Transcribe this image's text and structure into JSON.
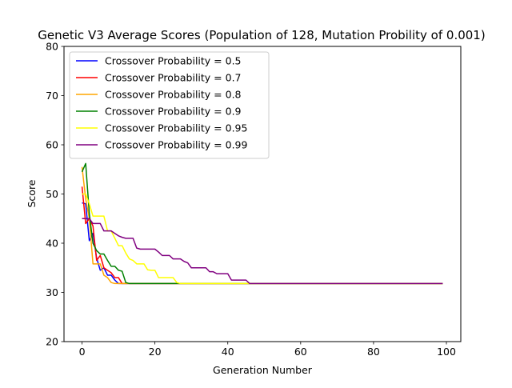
{
  "chart_data": {
    "type": "line",
    "title": "Genetic V3 Average Scores (Population of 128, Mutation Probility of 0.001)",
    "xlabel": "Generation Number",
    "ylabel": "Score",
    "xlim": [
      -4.95,
      103.95
    ],
    "ylim": [
      20,
      80
    ],
    "xticks": [
      0,
      20,
      40,
      60,
      80,
      100
    ],
    "yticks": [
      20,
      30,
      40,
      50,
      60,
      70,
      80
    ],
    "grid": false,
    "legend_position": "top-left",
    "series": [
      {
        "name": "Crossover Probability = 0.5",
        "color": "#0000ff",
        "points": [
          [
            0,
            48.2
          ],
          [
            1,
            48
          ],
          [
            2,
            40.5
          ],
          [
            3,
            42
          ],
          [
            4,
            37
          ],
          [
            5,
            34.5
          ],
          [
            6,
            35
          ],
          [
            7,
            33.5
          ],
          [
            8,
            33.5
          ],
          [
            9,
            32.5
          ],
          [
            10,
            31.8
          ],
          [
            99,
            31.8
          ]
        ]
      },
      {
        "name": "Crossover Probability = 0.7",
        "color": "#ff0000",
        "points": [
          [
            0,
            51.5
          ],
          [
            1,
            44
          ],
          [
            2,
            45
          ],
          [
            3,
            43.5
          ],
          [
            4,
            36.5
          ],
          [
            5,
            37.5
          ],
          [
            6,
            35
          ],
          [
            7,
            34.5
          ],
          [
            8,
            34
          ],
          [
            9,
            33
          ],
          [
            10,
            33
          ],
          [
            11,
            31.8
          ],
          [
            99,
            31.8
          ]
        ]
      },
      {
        "name": "Crossover Probability = 0.8",
        "color": "#ffa500",
        "points": [
          [
            0,
            55.5
          ],
          [
            1,
            49
          ],
          [
            2,
            45
          ],
          [
            3,
            35.8
          ],
          [
            4,
            35.8
          ],
          [
            5,
            35.8
          ],
          [
            6,
            33.5
          ],
          [
            7,
            33
          ],
          [
            8,
            32
          ],
          [
            9,
            31.8
          ],
          [
            99,
            31.8
          ]
        ]
      },
      {
        "name": "Crossover Probability = 0.9",
        "color": "#008000",
        "points": [
          [
            0,
            54.5
          ],
          [
            1,
            56.2
          ],
          [
            2,
            46
          ],
          [
            3,
            40
          ],
          [
            4,
            38.5
          ],
          [
            5,
            37.8
          ],
          [
            6,
            37.8
          ],
          [
            7,
            36.5
          ],
          [
            8,
            35.3
          ],
          [
            9,
            35.3
          ],
          [
            10,
            34.5
          ],
          [
            11,
            34.3
          ],
          [
            12,
            32
          ],
          [
            13,
            31.8
          ],
          [
            99,
            31.8
          ]
        ]
      },
      {
        "name": "Crossover Probability = 0.95",
        "color": "#ffff00",
        "points": [
          [
            0,
            50
          ],
          [
            1,
            50
          ],
          [
            2,
            48
          ],
          [
            3,
            45.5
          ],
          [
            4,
            45.5
          ],
          [
            5,
            45.5
          ],
          [
            6,
            45.5
          ],
          [
            7,
            42.5
          ],
          [
            8,
            42.5
          ],
          [
            9,
            41
          ],
          [
            10,
            39.5
          ],
          [
            11,
            39.5
          ],
          [
            12,
            38
          ],
          [
            13,
            36.8
          ],
          [
            14,
            36.5
          ],
          [
            15,
            35.8
          ],
          [
            16,
            35.8
          ],
          [
            17,
            35.8
          ],
          [
            18,
            34.6
          ],
          [
            19,
            34.5
          ],
          [
            20,
            34.5
          ],
          [
            21,
            33
          ],
          [
            22,
            33
          ],
          [
            23,
            33
          ],
          [
            24,
            33
          ],
          [
            25,
            33
          ],
          [
            26,
            32
          ],
          [
            27,
            31.8
          ],
          [
            99,
            31.8
          ]
        ]
      },
      {
        "name": "Crossover Probability = 0.99",
        "color": "#800080",
        "points": [
          [
            0,
            45
          ],
          [
            1,
            45
          ],
          [
            2,
            45
          ],
          [
            3,
            44
          ],
          [
            4,
            44
          ],
          [
            5,
            44
          ],
          [
            6,
            42.5
          ],
          [
            7,
            42.5
          ],
          [
            8,
            42.5
          ],
          [
            9,
            42
          ],
          [
            10,
            41.5
          ],
          [
            11,
            41.2
          ],
          [
            12,
            41
          ],
          [
            13,
            41
          ],
          [
            14,
            41
          ],
          [
            15,
            39
          ],
          [
            16,
            38.8
          ],
          [
            17,
            38.8
          ],
          [
            18,
            38.8
          ],
          [
            19,
            38.8
          ],
          [
            20,
            38.8
          ],
          [
            21,
            38.2
          ],
          [
            22,
            37.5
          ],
          [
            23,
            37.5
          ],
          [
            24,
            37.5
          ],
          [
            25,
            36.8
          ],
          [
            26,
            36.8
          ],
          [
            27,
            36.8
          ],
          [
            28,
            36.3
          ],
          [
            29,
            36
          ],
          [
            30,
            35
          ],
          [
            31,
            35
          ],
          [
            32,
            35
          ],
          [
            33,
            35
          ],
          [
            34,
            35
          ],
          [
            35,
            34.2
          ],
          [
            36,
            34.2
          ],
          [
            37,
            33.8
          ],
          [
            38,
            33.8
          ],
          [
            39,
            33.8
          ],
          [
            40,
            33.8
          ],
          [
            41,
            32.5
          ],
          [
            42,
            32.5
          ],
          [
            43,
            32.5
          ],
          [
            44,
            32.5
          ],
          [
            45,
            32.5
          ],
          [
            46,
            31.8
          ],
          [
            99,
            31.8
          ]
        ]
      }
    ]
  }
}
